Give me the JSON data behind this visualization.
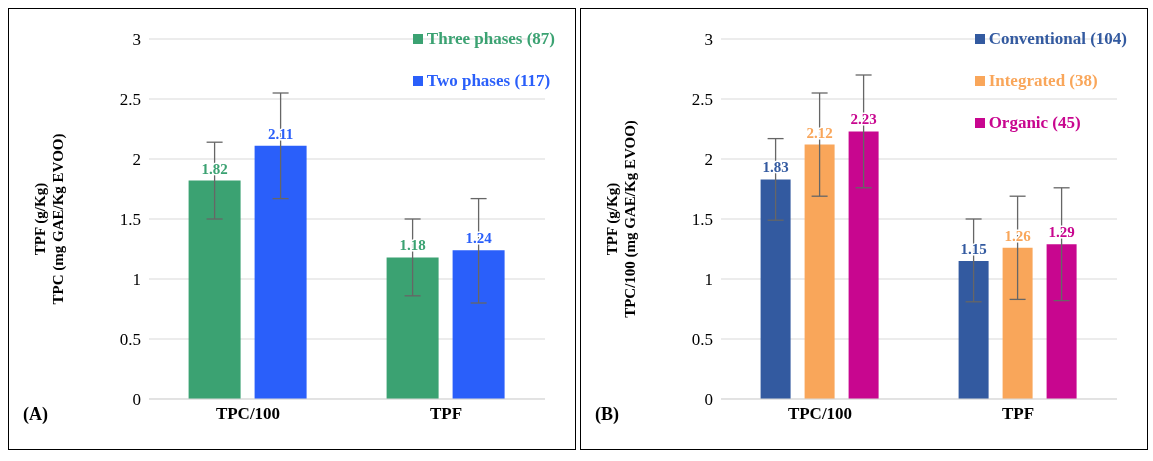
{
  "chart_data": [
    {
      "type": "bar",
      "ylabel": "TPF (g/Kg)\nTPC (mg GAE/Kg EVOO)",
      "annotations": [
        "(A)"
      ],
      "categories": [
        "TPC/100",
        "TPF"
      ],
      "series": [
        {
          "name": "Three phases (87)",
          "color": "#3ba272",
          "values": [
            1.82,
            1.18
          ],
          "errors": [
            [
              1.5,
              2.14
            ],
            [
              0.86,
              1.5
            ]
          ]
        },
        {
          "name": "Two phases (117)",
          "color": "#2a5ffa",
          "values": [
            2.11,
            1.24
          ],
          "errors": [
            [
              1.67,
              2.55
            ],
            [
              0.8,
              1.67
            ]
          ]
        }
      ],
      "ylim": [
        0,
        3
      ],
      "yticks": [
        0,
        0.5,
        1,
        1.5,
        2,
        2.5,
        3
      ],
      "grid": "y",
      "legend": "top right",
      "data_labels": true
    },
    {
      "type": "bar",
      "ylabel": "TPF (g/Kg)\nTPC/100 (mg GAE/Kg EVOO)",
      "annotations": [
        "(B)"
      ],
      "categories": [
        "TPC/100",
        "TPF"
      ],
      "series": [
        {
          "name": "Conventional (104)",
          "color": "#335aa0",
          "values": [
            1.83,
            1.15
          ],
          "errors": [
            [
              1.49,
              2.17
            ],
            [
              0.81,
              1.5
            ]
          ]
        },
        {
          "name": "Integrated (38)",
          "color": "#f9a65a",
          "values": [
            2.12,
            1.26
          ],
          "errors": [
            [
              1.69,
              2.55
            ],
            [
              0.83,
              1.69
            ]
          ]
        },
        {
          "name": "Organic (45)",
          "color": "#c8068f",
          "values": [
            2.23,
            1.29
          ],
          "errors": [
            [
              1.76,
              2.7
            ],
            [
              0.82,
              1.76
            ]
          ]
        }
      ],
      "ylim": [
        0,
        3
      ],
      "yticks": [
        0,
        0.5,
        1,
        1.5,
        2,
        2.5,
        3
      ],
      "grid": "y",
      "legend": "top right",
      "data_labels": true
    }
  ]
}
